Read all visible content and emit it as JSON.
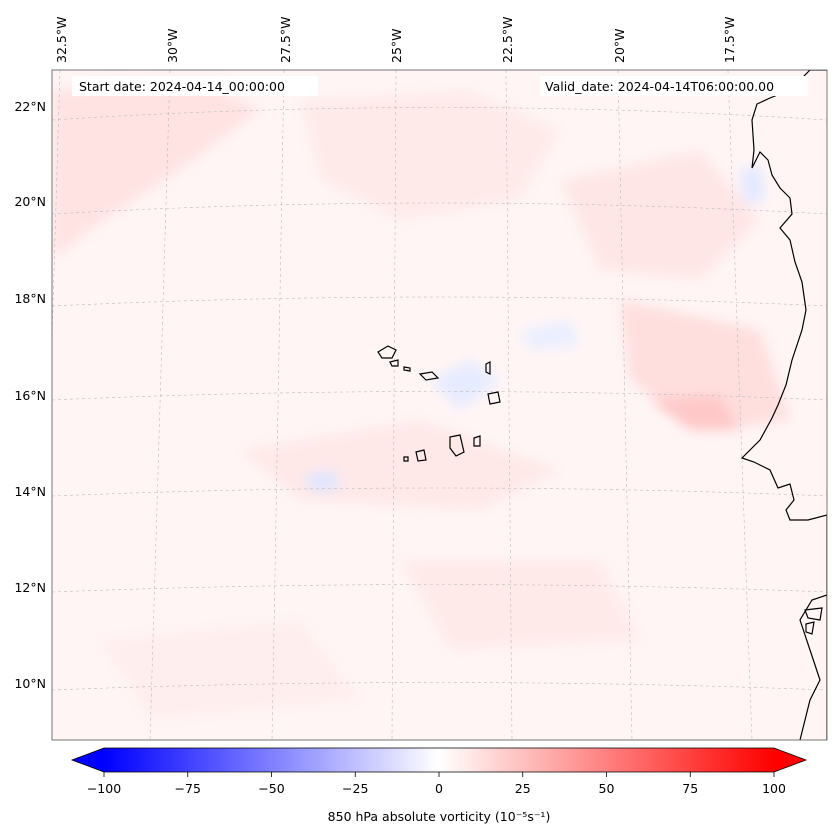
{
  "map": {
    "header": {
      "start_date": "Start date: 2024-04-14_00:00:00",
      "valid_date": "Valid_date: 2024-04-14T06:00:00.00"
    },
    "longitude_labels": [
      "32.5°W",
      "30°W",
      "27.5°W",
      "25°W",
      "22.5°W",
      "20°W",
      "17.5°W"
    ],
    "latitude_labels": [
      "22°N",
      "20°N",
      "18°N",
      "16°N",
      "14°N",
      "12°N",
      "10°N"
    ],
    "gridlines": true,
    "coastline_color": "#000000",
    "field_colormap": "bwr"
  },
  "colorbar": {
    "label": "850 hPa absolute vorticity (10⁻⁵s⁻¹)",
    "range": [
      -100,
      100
    ],
    "ticks": [
      "−100",
      "−75",
      "−50",
      "−25",
      "0",
      "25",
      "50",
      "75",
      "100"
    ],
    "extend": "both",
    "low_color": "#0000ff",
    "mid_color": "#ffffff",
    "high_color": "#ff0000"
  }
}
